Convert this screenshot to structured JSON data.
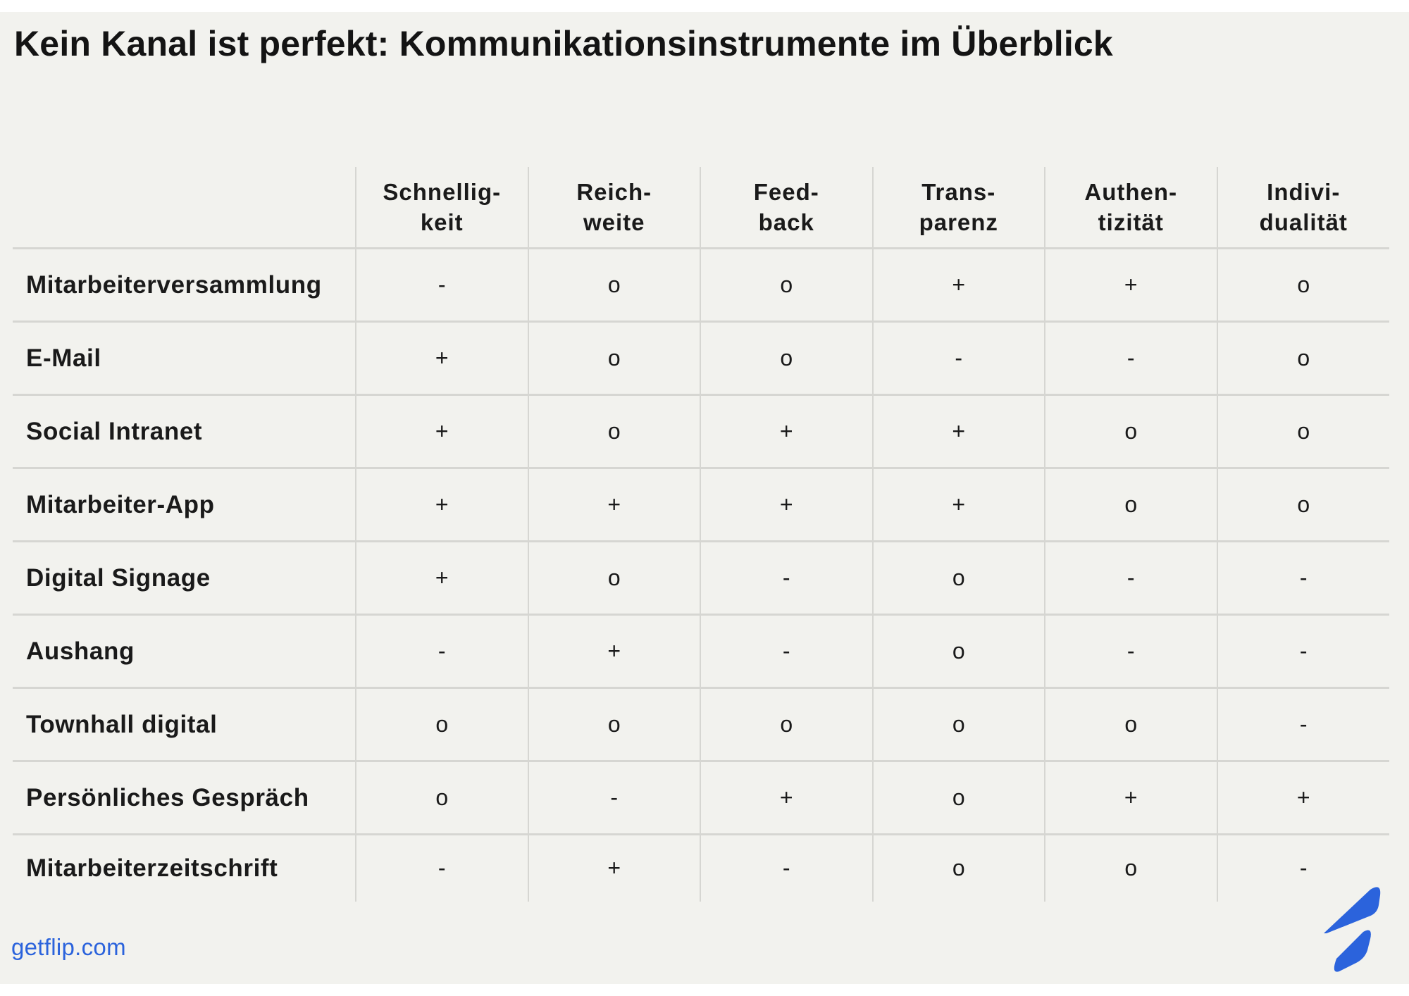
{
  "title": "Kein Kanal ist perfekt: Kommunikationsinstrumente im Überblick",
  "table": {
    "columns": [
      {
        "line1": "Schnellig-",
        "line2": "keit"
      },
      {
        "line1": "Reich-",
        "line2": "weite"
      },
      {
        "line1": "Feed-",
        "line2": "back"
      },
      {
        "line1": "Trans-",
        "line2": "parenz"
      },
      {
        "line1": "Authen-",
        "line2": "tizität"
      },
      {
        "line1": "Indivi-",
        "line2": "dualität"
      }
    ],
    "rows": [
      {
        "label": "Mitarbeiterversammlung",
        "cells": [
          "-",
          "o",
          "o",
          "+",
          "+",
          "o"
        ]
      },
      {
        "label": "E-Mail",
        "cells": [
          "+",
          "o",
          "o",
          "-",
          "-",
          "o"
        ]
      },
      {
        "label": "Social Intranet",
        "cells": [
          "+",
          "o",
          "+",
          "+",
          "o",
          "o"
        ]
      },
      {
        "label": "Mitarbeiter-App",
        "cells": [
          "+",
          "+",
          "+",
          "+",
          "o",
          "o"
        ]
      },
      {
        "label": "Digital Signage",
        "cells": [
          "+",
          "o",
          "-",
          "o",
          "-",
          "-"
        ]
      },
      {
        "label": "Aushang",
        "cells": [
          "-",
          "+",
          "-",
          "o",
          "-",
          "-"
        ]
      },
      {
        "label": "Townhall digital",
        "cells": [
          "o",
          "o",
          "o",
          "o",
          "o",
          "-"
        ]
      },
      {
        "label": "Persönliches Gespräch",
        "cells": [
          "o",
          "-",
          "+",
          "o",
          "+",
          "+"
        ]
      },
      {
        "label": "Mitarbeiterzeitschrift",
        "cells": [
          "-",
          "+",
          "-",
          "o",
          "o",
          "-"
        ]
      }
    ]
  },
  "footer": {
    "url": "getflip.com"
  },
  "brand": {
    "logo_icon": "flip-logo-icon",
    "color": "#2b63dc"
  }
}
